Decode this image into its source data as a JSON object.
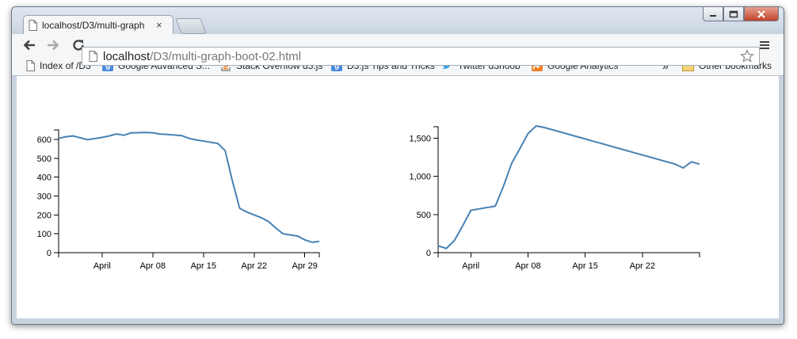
{
  "browser": {
    "tab": {
      "title": "localhost/D3/multi-graph",
      "close": "×"
    },
    "address": {
      "host": "localhost",
      "path": "/D3/multi-graph-boot-02.html"
    },
    "bookmarks": [
      {
        "label": "Index of /D3",
        "icon": "page-icon"
      },
      {
        "label": "Google Advanced S...",
        "icon": "google-icon"
      },
      {
        "label": "Stack Overflow d3.js",
        "icon": "stackoverflow-icon"
      },
      {
        "label": "D3.js Tips and Tricks",
        "icon": "google-icon"
      },
      {
        "label": "Twitter d3noob",
        "icon": "twitter-icon"
      },
      {
        "label": "Google Analytics",
        "icon": "analytics-icon"
      }
    ],
    "overflow": "»",
    "other_bookmarks": "Other bookmarks"
  },
  "chart_data": [
    {
      "type": "line",
      "x_type": "date",
      "xlim": [
        "2012-03-26",
        "2012-05-01"
      ],
      "ylim": [
        0,
        650
      ],
      "xticks": [
        {
          "date": "2012-04-01",
          "label": "April"
        },
        {
          "date": "2012-04-08",
          "label": "Apr 08"
        },
        {
          "date": "2012-04-15",
          "label": "Apr 15"
        },
        {
          "date": "2012-04-22",
          "label": "Apr 22"
        },
        {
          "date": "2012-04-29",
          "label": "Apr 29"
        }
      ],
      "yticks": [
        {
          "value": 0,
          "label": "0"
        },
        {
          "value": 100,
          "label": "100"
        },
        {
          "value": 200,
          "label": "200"
        },
        {
          "value": 300,
          "label": "300"
        },
        {
          "value": 400,
          "label": "400"
        },
        {
          "value": 500,
          "label": "500"
        },
        {
          "value": 600,
          "label": "600"
        }
      ],
      "x": [
        "2012-03-26",
        "2012-03-27",
        "2012-03-28",
        "2012-03-30",
        "2012-04-01",
        "2012-04-02",
        "2012-04-03",
        "2012-04-04",
        "2012-04-05",
        "2012-04-07",
        "2012-04-08",
        "2012-04-09",
        "2012-04-10",
        "2012-04-12",
        "2012-04-13",
        "2012-04-14",
        "2012-04-17",
        "2012-04-18",
        "2012-04-19",
        "2012-04-20",
        "2012-04-21",
        "2012-04-23",
        "2012-04-24",
        "2012-04-25",
        "2012-04-26",
        "2012-04-28",
        "2012-04-29",
        "2012-04-30",
        "2012-05-01"
      ],
      "y": [
        605,
        614,
        618,
        598,
        610,
        618,
        628,
        622,
        634,
        636,
        635,
        628,
        626,
        620,
        605,
        597,
        578,
        540,
        380,
        235,
        215,
        185,
        165,
        130,
        100,
        88,
        68,
        55,
        60
      ],
      "color": "#4682b4"
    },
    {
      "type": "line",
      "x_type": "date",
      "xlim": [
        "2012-03-28",
        "2012-04-29"
      ],
      "ylim": [
        0,
        1650
      ],
      "xticks": [
        {
          "date": "2012-04-01",
          "label": "April"
        },
        {
          "date": "2012-04-08",
          "label": "Apr 08"
        },
        {
          "date": "2012-04-15",
          "label": "Apr 15"
        },
        {
          "date": "2012-04-22",
          "label": "Apr 22"
        }
      ],
      "yticks": [
        {
          "value": 0,
          "label": "0"
        },
        {
          "value": 500,
          "label": "500"
        },
        {
          "value": 1000,
          "label": "1,000"
        },
        {
          "value": 1500,
          "label": "1,500"
        }
      ],
      "x": [
        "2012-03-28",
        "2012-03-29",
        "2012-03-30",
        "2012-03-31",
        "2012-04-01",
        "2012-04-04",
        "2012-04-05",
        "2012-04-06",
        "2012-04-07",
        "2012-04-08",
        "2012-04-09",
        "2012-04-10",
        "2012-04-11",
        "2012-04-12",
        "2012-04-13",
        "2012-04-14",
        "2012-04-15",
        "2012-04-16",
        "2012-04-17",
        "2012-04-18",
        "2012-04-19",
        "2012-04-20",
        "2012-04-21",
        "2012-04-22",
        "2012-04-23",
        "2012-04-24",
        "2012-04-25",
        "2012-04-26",
        "2012-04-27",
        "2012-04-28",
        "2012-04-29"
      ],
      "y": [
        90,
        55,
        160,
        350,
        555,
        610,
        870,
        1170,
        1360,
        1560,
        1660,
        1640,
        1610,
        1580,
        1550,
        1520,
        1490,
        1460,
        1430,
        1400,
        1370,
        1340,
        1310,
        1280,
        1250,
        1220,
        1190,
        1160,
        1110,
        1190,
        1160
      ],
      "color": "#4682b4"
    }
  ]
}
